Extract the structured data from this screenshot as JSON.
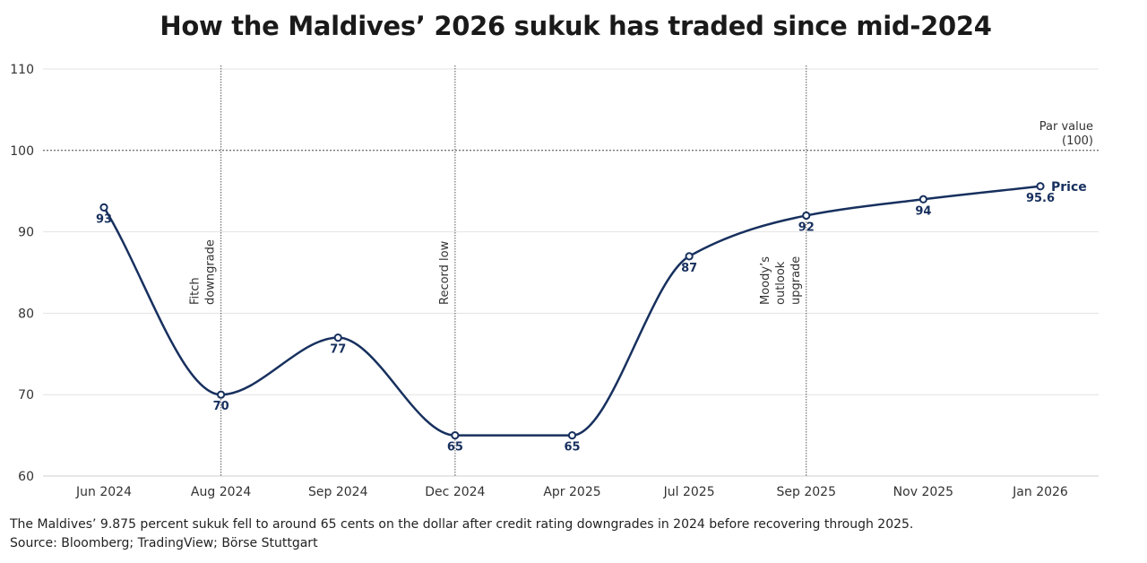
{
  "chart_data": {
    "type": "line",
    "title": "How the Maldives’ 2026 sukuk has traded since mid-2024",
    "categories": [
      "Jun 2024",
      "Aug 2024",
      "Sep 2024",
      "Dec 2024",
      "Apr 2025",
      "Jul 2025",
      "Sep 2025",
      "Nov 2025",
      "Jan 2026"
    ],
    "series": [
      {
        "name": "Price",
        "values": [
          93,
          70,
          77,
          65,
          65,
          87,
          92,
          94,
          95.6
        ],
        "labels": [
          "93",
          "70",
          "77",
          "65",
          "65",
          "87",
          "92",
          "94",
          "95.6"
        ]
      }
    ],
    "ylim": [
      60,
      110
    ],
    "yticks": [
      60,
      70,
      80,
      90,
      100,
      110
    ],
    "xlabel": "",
    "ylabel": "",
    "grid": true,
    "reference_line": {
      "value": 100,
      "label_lines": [
        "Par value",
        "(100)"
      ]
    },
    "events": [
      {
        "category": "Aug 2024",
        "label_lines": [
          "Fitch",
          "downgrade"
        ]
      },
      {
        "category": "Dec 2024",
        "label_lines": [
          "Record low"
        ]
      },
      {
        "category": "Sep 2025",
        "label_lines": [
          "Moody’s",
          "outlook",
          "upgrade"
        ]
      }
    ],
    "colors": {
      "line": "#17305e",
      "grid": "#e3e3e3",
      "marker_fill": "#ffffff"
    }
  },
  "caption": {
    "note": "The Maldives’ 9.875 percent sukuk fell to around 65 cents on the dollar after credit rating downgrades in 2024 before recovering through 2025.",
    "source": "Source: Bloomberg; TradingView; Börse Stuttgart"
  }
}
